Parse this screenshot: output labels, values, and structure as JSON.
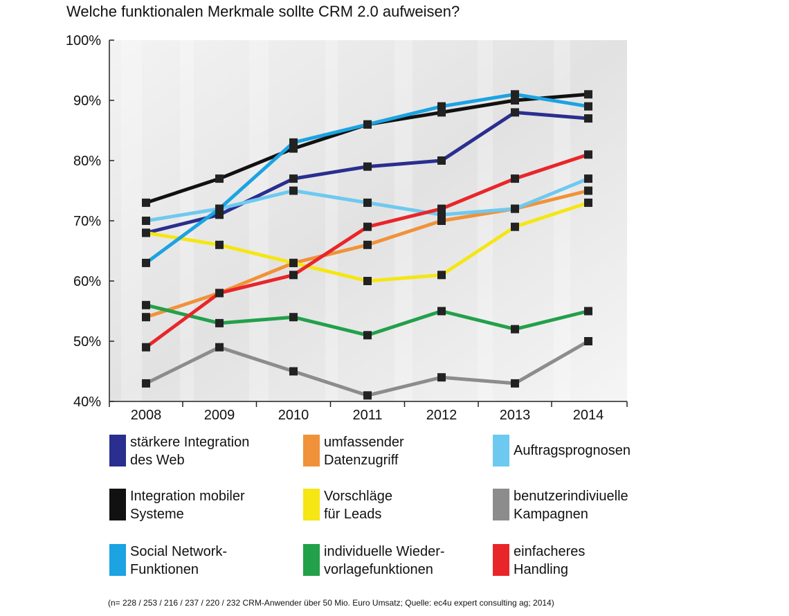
{
  "chart_data": {
    "type": "line",
    "title": "Welche funktionalen Merkmale sollte CRM 2.0 aufweisen?",
    "footnote": "(n= 228 / 253 / 216 / 237 / 220 / 232 CRM-Anwender über 50 Mio. Euro Umsatz; Quelle: ec4u expert consulting ag; 2014)",
    "x": [
      "2008",
      "2009",
      "2010",
      "2011",
      "2012",
      "2013",
      "2014"
    ],
    "ylim": [
      40,
      100
    ],
    "yticks": [
      "40%",
      "50%",
      "60%",
      "70%",
      "80%",
      "90%",
      "100%"
    ],
    "legend_position": "bottom",
    "series": [
      {
        "name": "stärkere Integration\ndes Web",
        "color": "#2a2e8e",
        "values": [
          68,
          71,
          77,
          79,
          80,
          88,
          87
        ]
      },
      {
        "name": "umfassender\nDatenzugriff",
        "color": "#f0923a",
        "values": [
          54,
          58,
          63,
          66,
          70,
          72,
          75
        ]
      },
      {
        "name": "Auftragsprognosen",
        "color": "#6ec9f0",
        "values": [
          70,
          72,
          75,
          73,
          71,
          72,
          77
        ]
      },
      {
        "name": "Integration mobiler\nSysteme",
        "color": "#111111",
        "values": [
          73,
          77,
          82,
          86,
          88,
          90,
          91
        ]
      },
      {
        "name": "Vorschläge\nfür Leads",
        "color": "#f5e614",
        "values": [
          68,
          66,
          63,
          60,
          61,
          69,
          73
        ]
      },
      {
        "name": "benutzerindiviuelle\nKampagnen",
        "color": "#8c8c8c",
        "values": [
          43,
          49,
          45,
          41,
          44,
          43,
          50
        ]
      },
      {
        "name": "Social Network-\nFunktionen",
        "color": "#1ba3e2",
        "values": [
          63,
          72,
          83,
          86,
          89,
          91,
          89
        ]
      },
      {
        "name": "individuelle Wieder-\nvorlagefunktionen",
        "color": "#22a04a",
        "values": [
          56,
          53,
          54,
          51,
          55,
          52,
          55
        ]
      },
      {
        "name": "einfacheres\nHandling",
        "color": "#e8262a",
        "values": [
          49,
          58,
          61,
          69,
          72,
          77,
          81
        ]
      }
    ]
  }
}
